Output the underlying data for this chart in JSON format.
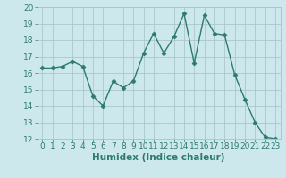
{
  "x": [
    0,
    1,
    2,
    3,
    4,
    5,
    6,
    7,
    8,
    9,
    10,
    11,
    12,
    13,
    14,
    15,
    16,
    17,
    18,
    19,
    20,
    21,
    22,
    23
  ],
  "y": [
    16.3,
    16.3,
    16.4,
    16.7,
    16.4,
    14.6,
    14.0,
    15.5,
    15.1,
    15.5,
    17.2,
    18.4,
    17.2,
    18.2,
    19.6,
    16.6,
    19.5,
    18.4,
    18.3,
    15.9,
    14.4,
    13.0,
    12.1,
    12.0
  ],
  "line_color": "#2d7a6e",
  "marker": "D",
  "marker_size": 2.5,
  "bg_color": "#cce8ec",
  "grid_color": "#aac8cc",
  "xlabel": "Humidex (Indice chaleur)",
  "ylim": [
    12,
    20
  ],
  "xlim": [
    -0.5,
    23.5
  ],
  "yticks": [
    12,
    13,
    14,
    15,
    16,
    17,
    18,
    19,
    20
  ],
  "xticks": [
    0,
    1,
    2,
    3,
    4,
    5,
    6,
    7,
    8,
    9,
    10,
    11,
    12,
    13,
    14,
    15,
    16,
    17,
    18,
    19,
    20,
    21,
    22,
    23
  ],
  "tick_label_size": 6.5,
  "xlabel_size": 7.5,
  "line_width": 1.0
}
